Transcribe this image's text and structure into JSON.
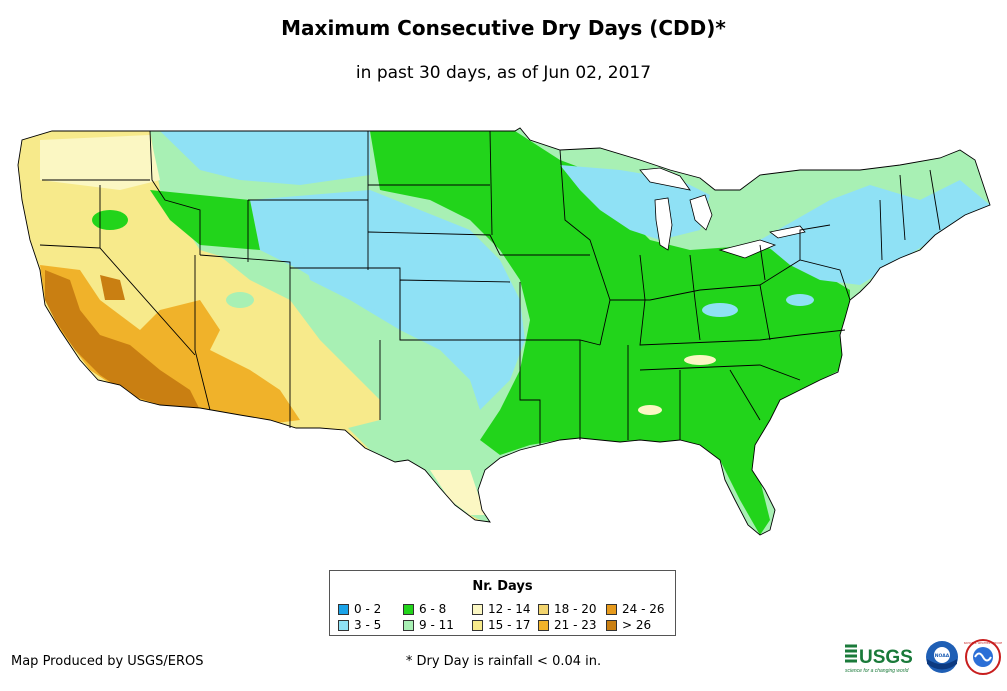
{
  "title": "Maximum Consecutive Dry Days (CDD)*",
  "subtitle": "in past 30 days, as of Jun 02, 2017",
  "legend": {
    "title": "Nr. Days",
    "items": [
      {
        "label": "0 - 2",
        "color": "#1aa3e8"
      },
      {
        "label": "3 - 5",
        "color": "#8fe1f5"
      },
      {
        "label": "6 - 8",
        "color": "#22d41b"
      },
      {
        "label": "9 - 11",
        "color": "#a8f0b4"
      },
      {
        "label": "12 - 14",
        "color": "#fbf7c3"
      },
      {
        "label": "15 - 17",
        "color": "#f7ea8b"
      },
      {
        "label": "18 - 20",
        "color": "#f2d46e"
      },
      {
        "label": "21 - 23",
        "color": "#f0b22a"
      },
      {
        "label": "24 - 26",
        "color": "#e69a1c"
      },
      {
        "label": "> 26",
        "color": "#c97f12"
      }
    ]
  },
  "credit": "Map Produced by USGS/EROS",
  "footnote": "* Dry Day is rainfall < 0.04 in.",
  "logos": {
    "usgs": "USGS",
    "usgs_tagline": "science for a changing world",
    "noaa": "NOAA",
    "nws": "NATIONAL WEATHER SERVICE"
  }
}
